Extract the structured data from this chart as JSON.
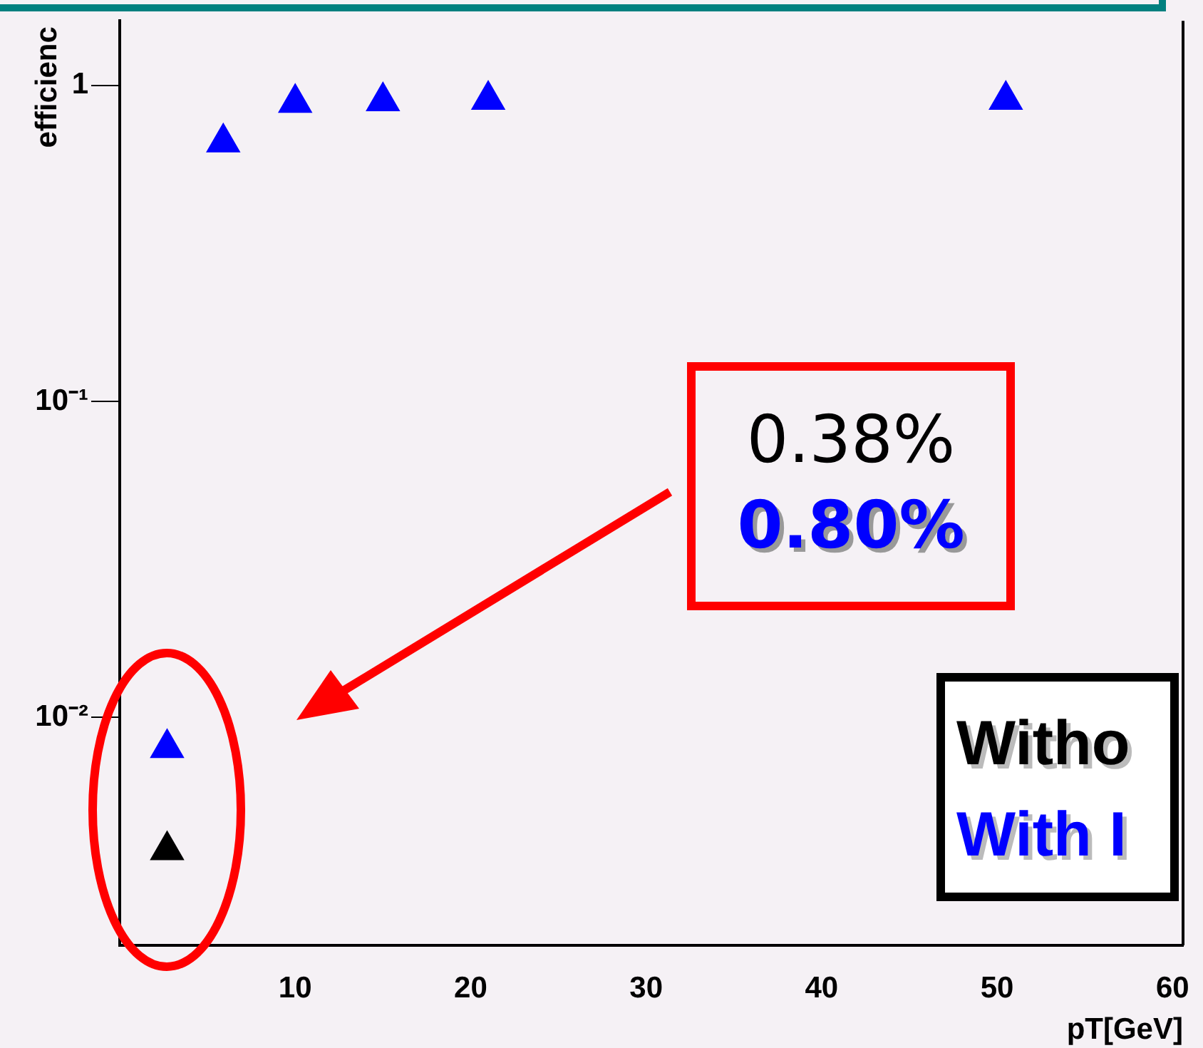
{
  "chart_data": {
    "type": "scatter",
    "xlabel": "pT[GeV]",
    "ylabel": "efficienc",
    "series": [
      {
        "name": "Witho",
        "color": "#000000",
        "x": [
          2.7
        ],
        "values": [
          0.0038
        ]
      },
      {
        "name": "With I",
        "color": "#0000ff",
        "x": [
          2.7,
          5.9,
          10,
          15,
          21,
          50.5
        ],
        "values": [
          0.008,
          0.66,
          0.88,
          0.89,
          0.9,
          0.9
        ]
      }
    ],
    "xlim": [
      0,
      60.6
    ],
    "xticks": [
      10,
      20,
      30,
      40,
      50,
      60
    ],
    "ylim": [
      0.0019,
      1.6
    ],
    "yticks": [
      1,
      {
        "value": 0.1,
        "label": "10⁻¹"
      },
      {
        "value": 0.01,
        "label": "10⁻²"
      }
    ],
    "log": "y",
    "grid": false,
    "marker": "triangle",
    "legend": "bottom right",
    "annotations": [
      "0.38%",
      "0.80%"
    ]
  }
}
